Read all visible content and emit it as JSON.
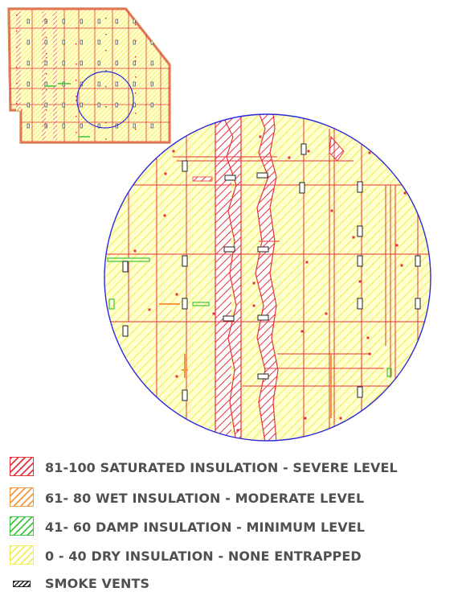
{
  "legend": {
    "items": [
      {
        "id": "severe",
        "label": "81-100 SATURATED INSULATION - SEVERE LEVEL",
        "stroke": "#e8323c",
        "fill": "#ffffff"
      },
      {
        "id": "moderate",
        "label": "61- 80 WET INSULATION - MODERATE LEVEL",
        "stroke": "#f49a3a",
        "fill": "#ffffff"
      },
      {
        "id": "minimum",
        "label": "41- 60 DAMP INSULATION - MINIMUM LEVEL",
        "stroke": "#3ec43e",
        "fill": "#ffffff"
      },
      {
        "id": "dry",
        "label": "0 - 40 DRY INSULATION - NONE ENTRAPPED",
        "stroke": "#f2ee5a",
        "fill": "#ffffff"
      }
    ],
    "vents_label": "SMOKE VENTS",
    "vents_color": "#222222"
  },
  "colors": {
    "roof_fill": "#ffffc4",
    "hatch_yellow": "#f2ee5a",
    "hatch_red": "#e8323c",
    "line_red": "#e8323c",
    "line_orange": "#f49a3a",
    "damp_green": "#3ec43e",
    "circle_stroke": "#2a2adc",
    "vent_stroke": "#222222"
  }
}
